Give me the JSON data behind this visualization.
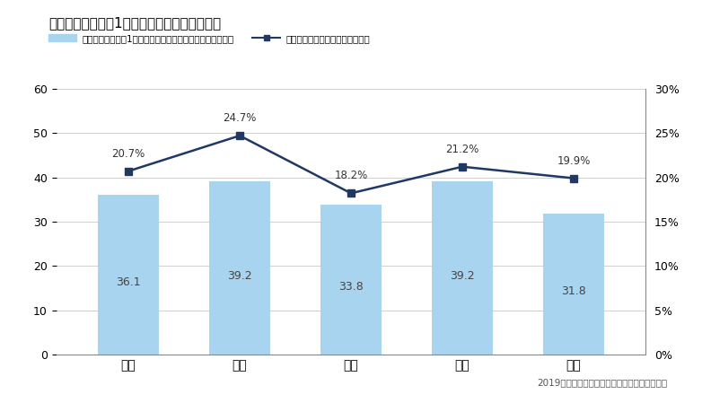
{
  "title": "スマートフォンの1日あたり動画視聴時間平均",
  "categories": [
    "全体",
    "男子",
    "女子",
    "文系",
    "理系"
  ],
  "bar_values": [
    36.1,
    39.2,
    33.8,
    39.2,
    31.8
  ],
  "line_values": [
    20.7,
    24.7,
    18.2,
    21.2,
    19.9
  ],
  "bar_color": "#a8d4f0",
  "line_color": "#1f3864",
  "ylim_left": [
    0,
    60
  ],
  "ylim_right": [
    0,
    30
  ],
  "yticks_left": [
    0,
    10,
    20,
    30,
    40,
    50,
    60
  ],
  "yticks_right": [
    0,
    5,
    10,
    15,
    20,
    25,
    30
  ],
  "ytick_right_labels": [
    "0%",
    "5%",
    "10%",
    "15%",
    "20%",
    "25%",
    "30%"
  ],
  "legend_bar_label": "スマートフォンの1日あたり動画視聴時間平均（単位：分）",
  "legend_line_label": "動画視聴平均時間／利用平均時間",
  "footer": "2019年卒マイナビ大学生のライフスタイル調査",
  "background_color": "#ffffff",
  "grid_color": "#d0d0d0",
  "title_fontsize": 11,
  "legend_fontsize": 7.5,
  "bar_width": 0.55
}
